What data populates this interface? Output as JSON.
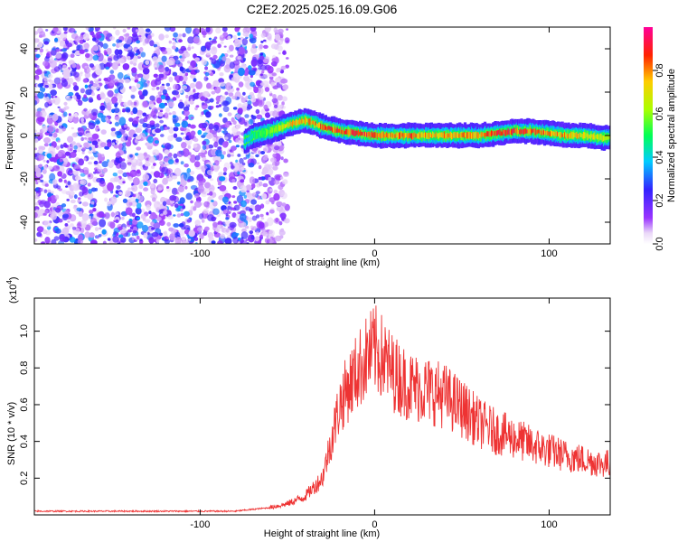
{
  "title": "C2E2.2025.025.16.09.G06",
  "chart_data": [
    {
      "type": "heatmap",
      "xlabel": "Height of straight line (km)",
      "ylabel": "Frequency (Hz)",
      "xlim": [
        -195,
        135
      ],
      "ylim": [
        -50,
        50
      ],
      "x_ticks": [
        -100,
        0,
        100
      ],
      "x_tick_labels": [
        "-100",
        "0",
        "100"
      ],
      "y_ticks": [
        -40,
        -20,
        0,
        20,
        40
      ],
      "y_tick_labels": [
        "-40",
        "-20",
        "0",
        "20",
        "40"
      ],
      "grid": false,
      "colorbar": {
        "label": "Normalized spectral amplitude",
        "range": [
          0,
          1
        ],
        "ticks": [
          0.0,
          0.2,
          0.4,
          0.6,
          0.8
        ],
        "tick_labels": [
          "0.0",
          "0.2",
          "0.4",
          "0.6",
          "0.8"
        ],
        "colormap": "rainbow (white-violet-blue-cyan-green-yellow-red-magenta)"
      },
      "noise_region_x": [
        -195,
        -55
      ],
      "signal_ridge": {
        "x": [
          -75,
          -70,
          -60,
          -50,
          -40,
          -30,
          -20,
          -10,
          0,
          10,
          20,
          30,
          40,
          50,
          60,
          70,
          80,
          90,
          100,
          110,
          120,
          130,
          135
        ],
        "frequency": [
          -3,
          0,
          2,
          5,
          7,
          4,
          2,
          1,
          0,
          0,
          0,
          0,
          0,
          0,
          0,
          1,
          2,
          2,
          1,
          0,
          0,
          -1,
          -1
        ],
        "peak_amplitude": [
          0.35,
          0.5,
          0.6,
          0.75,
          0.8,
          0.85,
          0.9,
          0.9,
          0.9,
          0.85,
          0.85,
          0.8,
          0.8,
          0.8,
          0.85,
          0.9,
          0.9,
          0.9,
          0.85,
          0.8,
          0.75,
          0.7,
          0.65
        ]
      }
    },
    {
      "type": "line",
      "xlabel": "Height of straight line (km)",
      "ylabel": "SNR (10 * v/v)",
      "y_exponent_label": "(x10",
      "y_exponent": "4",
      "xlim": [
        -195,
        135
      ],
      "ylim": [
        0,
        1.18
      ],
      "x_ticks": [
        -100,
        0,
        100
      ],
      "x_tick_labels": [
        "-100",
        "0",
        "100"
      ],
      "y_ticks": [
        0.2,
        0.4,
        0.6,
        0.8,
        1.0
      ],
      "y_tick_labels": [
        "0.2",
        "0.4",
        "0.6",
        "0.8",
        "1.0"
      ],
      "color": "#ee3333",
      "grid": false,
      "series": [
        {
          "x": [
            -195,
            -150,
            -100,
            -80,
            -70,
            -60,
            -55,
            -50,
            -40,
            -30,
            -25,
            -20,
            -15,
            -10,
            -5,
            0,
            5,
            10,
            20,
            30,
            40,
            50,
            60,
            70,
            80,
            90,
            100,
            110,
            120,
            130,
            135
          ],
          "values": [
            0.02,
            0.02,
            0.02,
            0.02,
            0.03,
            0.04,
            0.05,
            0.06,
            0.1,
            0.2,
            0.4,
            0.6,
            0.7,
            0.78,
            0.85,
            0.9,
            0.85,
            0.78,
            0.7,
            0.68,
            0.65,
            0.58,
            0.5,
            0.45,
            0.42,
            0.38,
            0.35,
            0.32,
            0.3,
            0.28,
            0.28
          ]
        }
      ]
    }
  ]
}
